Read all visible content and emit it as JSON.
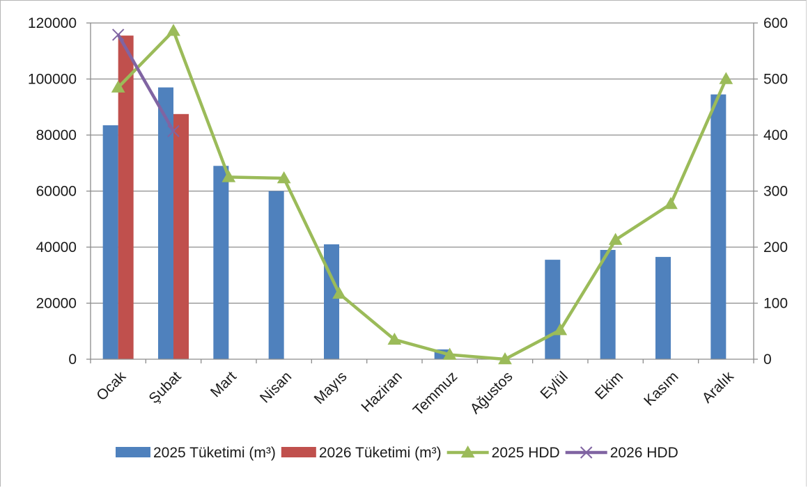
{
  "chart_data": {
    "type": "bar",
    "categories": [
      "Ocak",
      "Şubat",
      "Mart",
      "Nisan",
      "Mayıs",
      "Haziran",
      "Temmuz",
      "Ağustos",
      "Eylül",
      "Ekim",
      "Kasım",
      "Aralık"
    ],
    "title": "",
    "xlabel": "",
    "ylabel": "",
    "y_left": {
      "min": 0,
      "max": 120000,
      "ticks": [
        0,
        20000,
        40000,
        60000,
        80000,
        100000,
        120000
      ]
    },
    "y_right": {
      "min": 0,
      "max": 600,
      "ticks": [
        0,
        100,
        200,
        300,
        400,
        500,
        600
      ]
    },
    "grid": true,
    "legend_position": "bottom",
    "series": [
      {
        "name": "2025 Tüketimi (m³)",
        "kind": "bar",
        "axis": "left",
        "color": "#4f81bd",
        "values": [
          83500,
          97000,
          69000,
          60000,
          41000,
          0,
          3500,
          0,
          35500,
          39000,
          36500,
          94500
        ]
      },
      {
        "name": "2026 Tüketimi (m³)",
        "kind": "bar",
        "axis": "left",
        "color": "#c0504d",
        "values": [
          115500,
          87500,
          null,
          null,
          null,
          null,
          null,
          null,
          null,
          null,
          null,
          null
        ]
      },
      {
        "name": "2025 HDD",
        "kind": "line",
        "axis": "right",
        "color": "#9bbb59",
        "marker": "triangle",
        "values": [
          485,
          586,
          325,
          323,
          117,
          35,
          8,
          0,
          52,
          213,
          277,
          500
        ]
      },
      {
        "name": "2026 HDD",
        "kind": "line",
        "axis": "right",
        "color": "#8064a2",
        "marker": "x",
        "values": [
          579,
          407,
          null,
          null,
          null,
          null,
          null,
          null,
          null,
          null,
          null,
          null
        ]
      }
    ]
  }
}
